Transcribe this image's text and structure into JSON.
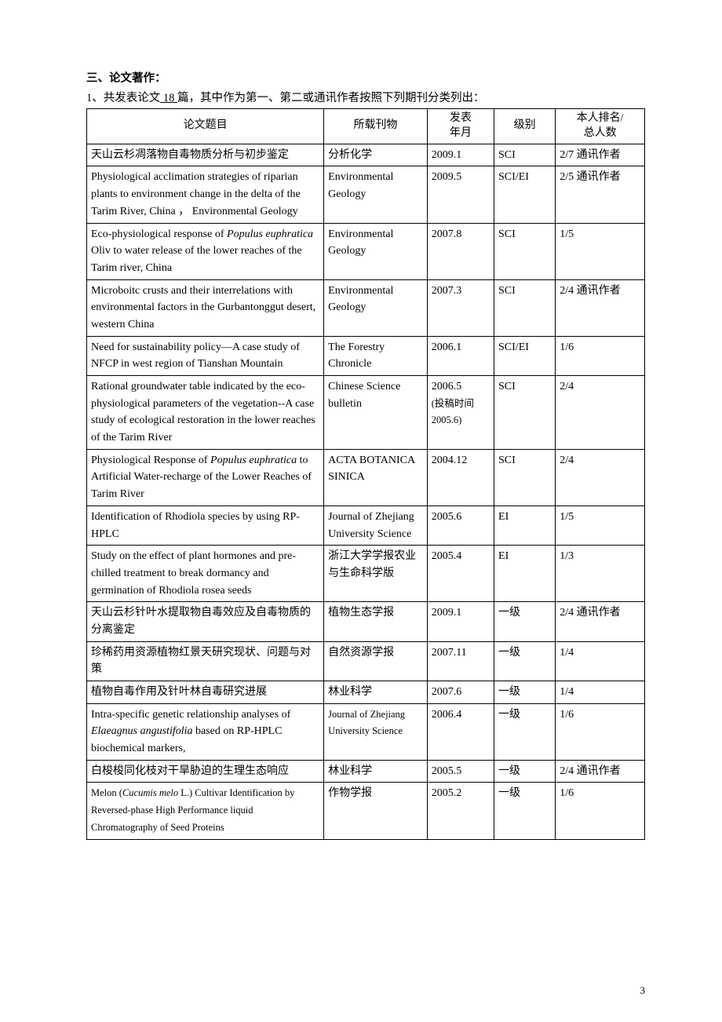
{
  "section": {
    "heading": "三、论文著作：",
    "intro_prefix": "1、共发表论文",
    "intro_underlined": "   18   ",
    "intro_suffix": "篇，其中作为第一、第二或通讯作者按照下列期刊分类列出："
  },
  "table": {
    "border_color": "#000000",
    "text_color": "#000000",
    "headers": {
      "title": "论文题目",
      "journal": "所载刊物",
      "date_line1": "发表",
      "date_line2": "年月",
      "level": "级别",
      "rank_line1": "本人排名/",
      "rank_line2": "总人数"
    },
    "column_widths_percent": [
      42.5,
      18.5,
      12,
      11,
      16
    ],
    "rows": [
      {
        "title_html": "天山云杉凋落物自毒物质分析与初步鉴定",
        "journal": "分析化学",
        "date": "2009.1",
        "level": "SCI",
        "rank": "2/7 通讯作者",
        "justify": false
      },
      {
        "title_html": "Physiological acclimation strategies of riparian plants to environment change in the delta of the Tarim River, China ， Environmental Geology",
        "journal": "Environmental Geology",
        "date": "2009.5",
        "level": "SCI/EI",
        "rank": "2/5 通讯作者",
        "justify": true
      },
      {
        "title_html": "Eco-physiological response of <span class=\"italic\">Populus euphratica</span> Oliv to water release of the lower reaches of the Tarim river, China",
        "journal": "Environmental Geology",
        "date": "2007.8",
        "level": "SCI",
        "rank": "1/5",
        "justify": true
      },
      {
        "title_html": "Microboitc crusts and their interrelations with environmental factors in the Gurbantonggut desert, western China",
        "journal": "Environmental Geology",
        "date": "2007.3",
        "level": "SCI",
        "rank": "2/4 通讯作者",
        "justify": true
      },
      {
        "title_html": "Need for sustainability policy—A case study of NFCP in west region of Tianshan Mountain",
        "journal": "The Forestry Chronicle",
        "date": "2006.1",
        "level": "SCI/EI",
        "rank": "1/6",
        "justify": true,
        "journal_justify": true
      },
      {
        "title_html": "Rational groundwater table indicated by the eco-physiological parameters of the vegetation--A case study of ecological restoration in the lower reaches of the Tarim River",
        "journal": "Chinese Science bulletin",
        "date": "2006.5<br><span class=\"small\">(投稿时间2005.6)</span>",
        "level": "SCI",
        "rank": "2/4",
        "justify": true,
        "journal_justify": true
      },
      {
        "title_html": "Physiological Response of <span class=\"italic\">Populus euphratica</span> to Artificial Water-recharge of the Lower Reaches of Tarim River",
        "journal": "ACTA BOTANICA SINICA",
        "date": "2004.12",
        "level": "SCI",
        "rank": "2/4",
        "justify": true
      },
      {
        "title_html": "Identification of Rhodiola species by using RP-HPLC",
        "journal": "Journal of Zhejiang University Science",
        "date": "2005.6",
        "level": "EI",
        "rank": "1/5",
        "justify": true,
        "journal_justify": true
      },
      {
        "title_html": "Study on the effect of plant hormones and pre-chilled treatment to break dormancy and germination of Rhodiola rosea seeds",
        "journal": "浙江大学学报农业与生命科学版",
        "date": "2005.4",
        "level": "EI",
        "rank": "1/3",
        "justify": true
      },
      {
        "title_html": "天山云杉针叶水提取物自毒效应及自毒物质的分离鉴定",
        "journal": "植物生态学报",
        "date": "2009.1",
        "level": "一级",
        "rank": "2/4 通讯作者",
        "justify": false
      },
      {
        "title_html": "珍稀药用资源植物红景天研究现状、问题与对策",
        "journal": "自然资源学报",
        "date": "2007.11",
        "level": "一级",
        "rank": "1/4",
        "justify": false
      },
      {
        "title_html": "植物自毒作用及针叶林自毒研究进展",
        "journal": "林业科学",
        "date": "2007.6",
        "level": "一级",
        "rank": "1/4",
        "justify": false
      },
      {
        "title_html": "Intra-specific genetic relationship analyses of <span class=\"italic\">Elaeagnus angustifolia</span> based on RP-HPLC biochemical markers,",
        "journal": "<span class=\"small\">Journal of Zhejiang University Science</span>",
        "date": "2006.4",
        "level": "一级",
        "rank": "1/6",
        "justify": true
      },
      {
        "title_html": "白梭梭同化枝对干旱胁迫的生理生态响应",
        "journal": "林业科学",
        "date": "2005.5",
        "level": "一级",
        "rank": "2/4 通讯作者",
        "justify": false
      },
      {
        "title_html": "<span class=\"small\">Melon (<span class=\"italic\">Cucumis melo</span> L.) Cultivar Identification by Reversed-phase High Performance liquid Chromatography of Seed Proteins</span>",
        "journal": "作物学报",
        "date": "2005.2",
        "level": "一级",
        "rank": "1/6",
        "justify": true
      }
    ]
  },
  "page_number": "3"
}
